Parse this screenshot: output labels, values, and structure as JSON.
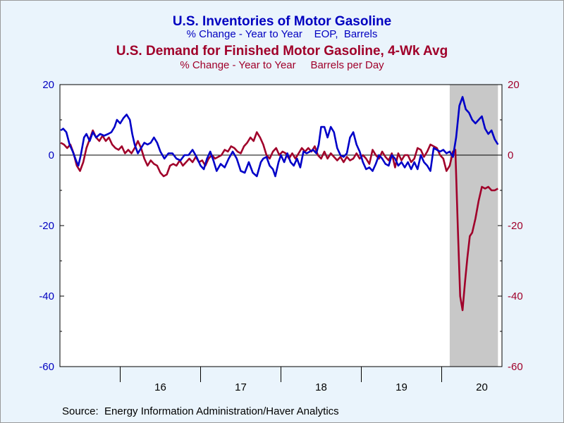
{
  "titles": {
    "title1": "U.S. Inventories of Motor Gasoline",
    "subtitle1": "% Change - Year to Year    EOP,  Barrels",
    "title2": "U.S. Demand for Finished Motor Gasoline, 4-Wk Avg",
    "subtitle2": "% Change - Year to Year     Barrels per Day"
  },
  "source": "Source:  Energy Information Administration/Haver Analytics",
  "colors": {
    "inventories": "#0000c8",
    "demand": "#a0002a",
    "plot_bg": "#ffffff",
    "recession_shade": "#c8c8c8",
    "left_axis": "#0000c0",
    "right_axis": "#a0002a"
  },
  "chart_data": {
    "type": "line",
    "x_unit": "year",
    "xlim": [
      2015.25,
      2020.75
    ],
    "ylim": [
      -60,
      20
    ],
    "yticks": [
      20,
      0,
      -20,
      -40,
      -60
    ],
    "left_tick_labels": [
      "20",
      "0",
      "-20",
      "-40",
      "-60"
    ],
    "right_tick_labels": [
      "20",
      "0",
      "-20",
      "-40",
      "-60"
    ],
    "x_tick_labels": [
      {
        "label": "16",
        "x": 2016.5
      },
      {
        "label": "17",
        "x": 2017.5
      },
      {
        "label": "18",
        "x": 2018.5
      },
      {
        "label": "19",
        "x": 2019.5
      },
      {
        "label": "20",
        "x": 2020.5
      }
    ],
    "x_year_ticks": [
      2016,
      2017,
      2018,
      2019,
      2020
    ],
    "zero_line": true,
    "shaded_region": {
      "from": 2020.1,
      "to": 2020.7
    },
    "series": [
      {
        "name": "U.S. Inventories of Motor Gasoline",
        "axis": "left",
        "points": [
          [
            2015.26,
            7
          ],
          [
            2015.29,
            7.5
          ],
          [
            2015.33,
            6.5
          ],
          [
            2015.37,
            3
          ],
          [
            2015.41,
            1
          ],
          [
            2015.45,
            -1.5
          ],
          [
            2015.48,
            -3
          ],
          [
            2015.51,
            0
          ],
          [
            2015.55,
            5
          ],
          [
            2015.58,
            6
          ],
          [
            2015.62,
            4
          ],
          [
            2015.66,
            6.5
          ],
          [
            2015.7,
            5
          ],
          [
            2015.75,
            6
          ],
          [
            2015.8,
            5.5
          ],
          [
            2015.85,
            6
          ],
          [
            2015.89,
            6.5
          ],
          [
            2015.93,
            8
          ],
          [
            2015.96,
            10
          ],
          [
            2016.0,
            9
          ],
          [
            2016.04,
            10.5
          ],
          [
            2016.08,
            11.5
          ],
          [
            2016.12,
            10
          ],
          [
            2016.15,
            6
          ],
          [
            2016.18,
            3
          ],
          [
            2016.22,
            0.5
          ],
          [
            2016.26,
            2
          ],
          [
            2016.3,
            3.5
          ],
          [
            2016.34,
            3
          ],
          [
            2016.38,
            3.5
          ],
          [
            2016.42,
            5
          ],
          [
            2016.46,
            3.5
          ],
          [
            2016.5,
            1
          ],
          [
            2016.55,
            -1
          ],
          [
            2016.6,
            0.5
          ],
          [
            2016.65,
            0.5
          ],
          [
            2016.7,
            -1
          ],
          [
            2016.75,
            -1.5
          ],
          [
            2016.8,
            0
          ],
          [
            2016.85,
            0
          ],
          [
            2016.9,
            1.5
          ],
          [
            2016.95,
            -0.5
          ],
          [
            2017.0,
            -3
          ],
          [
            2017.04,
            -4
          ],
          [
            2017.08,
            -1
          ],
          [
            2017.12,
            1
          ],
          [
            2017.16,
            -1.5
          ],
          [
            2017.2,
            -4.5
          ],
          [
            2017.25,
            -2.5
          ],
          [
            2017.3,
            -3.5
          ],
          [
            2017.35,
            -1
          ],
          [
            2017.4,
            1
          ],
          [
            2017.45,
            -1
          ],
          [
            2017.5,
            -4.5
          ],
          [
            2017.55,
            -5
          ],
          [
            2017.6,
            -2
          ],
          [
            2017.65,
            -5
          ],
          [
            2017.7,
            -6
          ],
          [
            2017.75,
            -2
          ],
          [
            2017.78,
            -1
          ],
          [
            2017.82,
            -0.5
          ],
          [
            2017.86,
            -3
          ],
          [
            2017.9,
            -4
          ],
          [
            2017.93,
            -6
          ],
          [
            2017.97,
            -2
          ],
          [
            2018.0,
            0
          ],
          [
            2018.04,
            -2
          ],
          [
            2018.08,
            0.5
          ],
          [
            2018.12,
            -2
          ],
          [
            2018.16,
            -3
          ],
          [
            2018.2,
            -1
          ],
          [
            2018.24,
            -3.5
          ],
          [
            2018.28,
            1
          ],
          [
            2018.32,
            0.5
          ],
          [
            2018.36,
            1
          ],
          [
            2018.4,
            1.5
          ],
          [
            2018.44,
            0.5
          ],
          [
            2018.47,
            3
          ],
          [
            2018.5,
            8
          ],
          [
            2018.54,
            8
          ],
          [
            2018.58,
            5
          ],
          [
            2018.62,
            8
          ],
          [
            2018.66,
            6.5
          ],
          [
            2018.7,
            2
          ],
          [
            2018.74,
            0
          ],
          [
            2018.78,
            -0.5
          ],
          [
            2018.82,
            0.5
          ],
          [
            2018.86,
            5
          ],
          [
            2018.9,
            6.5
          ],
          [
            2018.94,
            3
          ],
          [
            2018.98,
            1
          ],
          [
            2019.02,
            -2
          ],
          [
            2019.06,
            -4
          ],
          [
            2019.1,
            -3.5
          ],
          [
            2019.14,
            -4.5
          ],
          [
            2019.18,
            -2.5
          ],
          [
            2019.22,
            0
          ],
          [
            2019.26,
            -1
          ],
          [
            2019.3,
            -2.5
          ],
          [
            2019.34,
            -3
          ],
          [
            2019.38,
            0
          ],
          [
            2019.42,
            -1
          ],
          [
            2019.46,
            -3
          ],
          [
            2019.5,
            -2
          ],
          [
            2019.54,
            -3.5
          ],
          [
            2019.58,
            -2
          ],
          [
            2019.62,
            -4
          ],
          [
            2019.66,
            -2
          ],
          [
            2019.7,
            -4
          ],
          [
            2019.74,
            0
          ],
          [
            2019.78,
            -2
          ],
          [
            2019.82,
            -3
          ],
          [
            2019.86,
            -4.5
          ],
          [
            2019.9,
            2
          ],
          [
            2019.94,
            1.5
          ],
          [
            2019.98,
            1
          ],
          [
            2020.02,
            1.5
          ],
          [
            2020.06,
            0.5
          ],
          [
            2020.1,
            1
          ],
          [
            2020.14,
            -0.5
          ],
          [
            2020.18,
            5
          ],
          [
            2020.22,
            14
          ],
          [
            2020.26,
            16.5
          ],
          [
            2020.3,
            13
          ],
          [
            2020.34,
            12
          ],
          [
            2020.38,
            10
          ],
          [
            2020.42,
            9
          ],
          [
            2020.46,
            10
          ],
          [
            2020.5,
            11
          ],
          [
            2020.54,
            7.5
          ],
          [
            2020.58,
            6
          ],
          [
            2020.62,
            7
          ],
          [
            2020.66,
            4.5
          ],
          [
            2020.7,
            3
          ]
        ]
      },
      {
        "name": "U.S. Demand for Finished Motor Gasoline, 4-Wk Avg",
        "axis": "right",
        "points": [
          [
            2015.26,
            3.5
          ],
          [
            2015.3,
            3
          ],
          [
            2015.34,
            2
          ],
          [
            2015.38,
            3
          ],
          [
            2015.42,
            0.5
          ],
          [
            2015.46,
            -3
          ],
          [
            2015.5,
            -4.5
          ],
          [
            2015.54,
            -2
          ],
          [
            2015.58,
            2
          ],
          [
            2015.62,
            4.5
          ],
          [
            2015.66,
            7
          ],
          [
            2015.7,
            5
          ],
          [
            2015.74,
            4
          ],
          [
            2015.78,
            5.5
          ],
          [
            2015.82,
            4
          ],
          [
            2015.86,
            5
          ],
          [
            2015.9,
            3
          ],
          [
            2015.94,
            2
          ],
          [
            2015.98,
            1.5
          ],
          [
            2016.02,
            2.5
          ],
          [
            2016.06,
            0.5
          ],
          [
            2016.1,
            1.5
          ],
          [
            2016.14,
            0.5
          ],
          [
            2016.18,
            2
          ],
          [
            2016.22,
            4
          ],
          [
            2016.26,
            2
          ],
          [
            2016.3,
            -1
          ],
          [
            2016.34,
            -3
          ],
          [
            2016.38,
            -1.5
          ],
          [
            2016.42,
            -2.5
          ],
          [
            2016.46,
            -3
          ],
          [
            2016.5,
            -5
          ],
          [
            2016.54,
            -6
          ],
          [
            2016.58,
            -5.5
          ],
          [
            2016.62,
            -3
          ],
          [
            2016.66,
            -2.5
          ],
          [
            2016.7,
            -3
          ],
          [
            2016.74,
            -1.5
          ],
          [
            2016.78,
            -3
          ],
          [
            2016.82,
            -2
          ],
          [
            2016.86,
            -1
          ],
          [
            2016.9,
            -2
          ],
          [
            2016.94,
            -0.5
          ],
          [
            2016.98,
            -2
          ],
          [
            2017.02,
            -1.5
          ],
          [
            2017.06,
            -3
          ],
          [
            2017.1,
            -1
          ],
          [
            2017.14,
            0
          ],
          [
            2017.18,
            -1
          ],
          [
            2017.22,
            -0.5
          ],
          [
            2017.26,
            0
          ],
          [
            2017.3,
            1.5
          ],
          [
            2017.34,
            1
          ],
          [
            2017.38,
            2.5
          ],
          [
            2017.42,
            2
          ],
          [
            2017.46,
            1
          ],
          [
            2017.5,
            0.5
          ],
          [
            2017.54,
            2.5
          ],
          [
            2017.58,
            3.5
          ],
          [
            2017.62,
            5
          ],
          [
            2017.66,
            4
          ],
          [
            2017.7,
            6.5
          ],
          [
            2017.74,
            5
          ],
          [
            2017.78,
            3
          ],
          [
            2017.82,
            0
          ],
          [
            2017.86,
            -1
          ],
          [
            2017.9,
            1
          ],
          [
            2017.94,
            2
          ],
          [
            2017.98,
            0
          ],
          [
            2018.02,
            1
          ],
          [
            2018.06,
            0.5
          ],
          [
            2018.1,
            -1
          ],
          [
            2018.14,
            0.5
          ],
          [
            2018.18,
            -1
          ],
          [
            2018.22,
            0.5
          ],
          [
            2018.26,
            2
          ],
          [
            2018.3,
            1
          ],
          [
            2018.34,
            2
          ],
          [
            2018.38,
            1
          ],
          [
            2018.42,
            2.5
          ],
          [
            2018.46,
            0
          ],
          [
            2018.5,
            -1
          ],
          [
            2018.54,
            1
          ],
          [
            2018.58,
            -1
          ],
          [
            2018.62,
            0.5
          ],
          [
            2018.66,
            -0.5
          ],
          [
            2018.7,
            -1.5
          ],
          [
            2018.74,
            -0.5
          ],
          [
            2018.78,
            -2
          ],
          [
            2018.82,
            -0.5
          ],
          [
            2018.86,
            -1.5
          ],
          [
            2018.9,
            -1
          ],
          [
            2018.94,
            0.5
          ],
          [
            2018.98,
            -1
          ],
          [
            2019.02,
            0
          ],
          [
            2019.06,
            -1
          ],
          [
            2019.1,
            -2.5
          ],
          [
            2019.14,
            1.5
          ],
          [
            2019.18,
            0
          ],
          [
            2019.22,
            -1
          ],
          [
            2019.26,
            1
          ],
          [
            2019.3,
            -0.5
          ],
          [
            2019.34,
            -1.5
          ],
          [
            2019.38,
            0.5
          ],
          [
            2019.42,
            -3.5
          ],
          [
            2019.46,
            0.5
          ],
          [
            2019.5,
            -1.5
          ],
          [
            2019.54,
            0
          ],
          [
            2019.58,
            0
          ],
          [
            2019.62,
            -2
          ],
          [
            2019.66,
            -1
          ],
          [
            2019.7,
            2
          ],
          [
            2019.74,
            1.5
          ],
          [
            2019.78,
            -0.5
          ],
          [
            2019.82,
            1
          ],
          [
            2019.86,
            3
          ],
          [
            2019.9,
            2.5
          ],
          [
            2019.94,
            2
          ],
          [
            2019.98,
            0
          ],
          [
            2020.02,
            -1
          ],
          [
            2020.06,
            -4.5
          ],
          [
            2020.1,
            -3
          ],
          [
            2020.14,
            1
          ],
          [
            2020.17,
            1.5
          ],
          [
            2020.2,
            -20
          ],
          [
            2020.23,
            -40
          ],
          [
            2020.26,
            -44
          ],
          [
            2020.29,
            -36
          ],
          [
            2020.32,
            -29
          ],
          [
            2020.35,
            -23
          ],
          [
            2020.38,
            -22
          ],
          [
            2020.42,
            -18
          ],
          [
            2020.46,
            -13
          ],
          [
            2020.5,
            -9
          ],
          [
            2020.54,
            -9.5
          ],
          [
            2020.58,
            -9
          ],
          [
            2020.62,
            -10
          ],
          [
            2020.66,
            -10
          ],
          [
            2020.7,
            -9.5
          ]
        ]
      }
    ]
  }
}
